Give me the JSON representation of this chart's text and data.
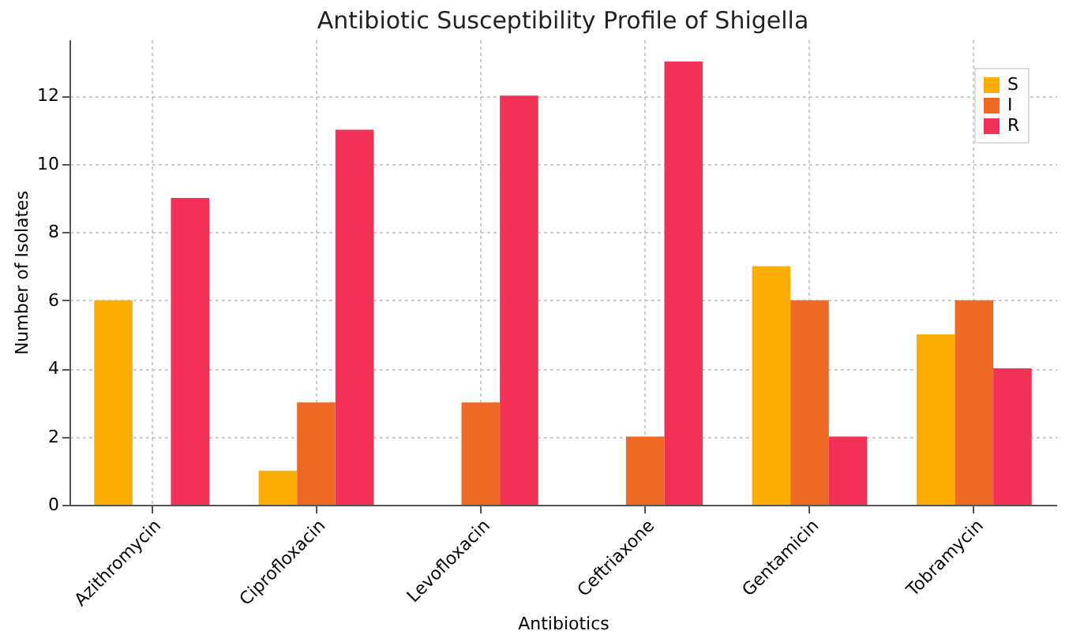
{
  "chart_data": {
    "type": "bar",
    "title": "Antibiotic Susceptibility Profile of Shigella",
    "xlabel": "Antibiotics",
    "ylabel": "Number of Isolates",
    "categories": [
      "Azithromycin",
      "Ciprofloxacin",
      "Levofloxacin",
      "Ceftriaxone",
      "Gentamicin",
      "Tobramycin"
    ],
    "series": [
      {
        "name": "S",
        "color": "#fbad05",
        "values": [
          6,
          1,
          0,
          0,
          7,
          5
        ]
      },
      {
        "name": "I",
        "color": "#ee6a24",
        "values": [
          0,
          3,
          3,
          2,
          6,
          6
        ]
      },
      {
        "name": "R",
        "color": "#f23157",
        "values": [
          9,
          11,
          12,
          13,
          2,
          4
        ]
      }
    ],
    "ylim": [
      0,
      13.65
    ],
    "yticks": [
      0,
      2,
      4,
      6,
      8,
      10,
      12
    ],
    "grid": true,
    "legend": "top right"
  }
}
